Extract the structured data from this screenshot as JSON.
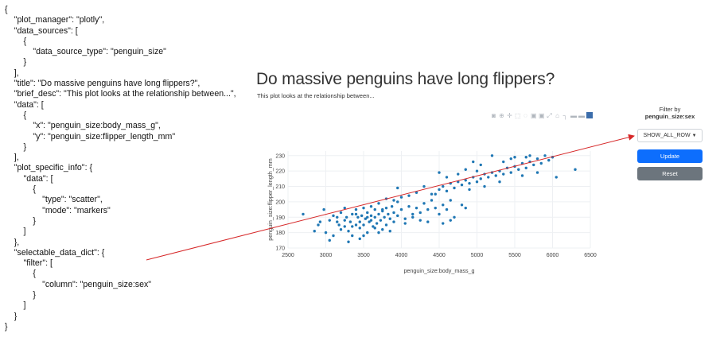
{
  "json_lines": [
    "{",
    "    \"plot_manager\": \"plotly\",",
    "    \"data_sources\": [",
    "        {",
    "            \"data_source_type\": \"penguin_size\"",
    "        }",
    "    ],",
    "    \"title\": \"Do massive penguins have long flippers?\",",
    "    \"brief_desc\": \"This plot looks at the relationship between...\",",
    "    \"data\": [",
    "        {",
    "            \"x\": \"penguin_size:body_mass_g\",",
    "            \"y\": \"penguin_size:flipper_length_mm\"",
    "        }",
    "    ],",
    "    \"plot_specific_info\": {",
    "        \"data\": [",
    "            {",
    "                \"type\": \"scatter\",",
    "                \"mode\": \"markers\"",
    "            }",
    "        ]",
    "    },",
    "    \"selectable_data_dict\": {",
    "        \"filter\": [",
    "            {",
    "                \"column\": \"penguin_size:sex\"",
    "            }",
    "        ]",
    "    }",
    "}"
  ],
  "page": {
    "title": "Do massive penguins have long flippers?",
    "desc": "This plot looks at the relationship between..."
  },
  "filter": {
    "title_line1": "Filter by",
    "title_line2": "penguin_size:sex",
    "select_value": "SHOW_ALL_ROW",
    "update_label": "Update",
    "reset_label": "Reset"
  },
  "colors": {
    "marker": "#1f77b4",
    "arrow": "#d62728",
    "update": "#0d6efd",
    "reset": "#6c757d"
  },
  "modebar_icons": [
    "camera-icon",
    "zoom-icon",
    "pan-icon",
    "box-select-icon",
    "lasso-icon",
    "zoom-in-icon",
    "zoom-out-icon",
    "autoscale-icon",
    "reset-axes-icon",
    "spike-icon",
    "hover-closest-icon",
    "hover-compare-icon",
    "plotly-logo-icon"
  ],
  "chart_data": {
    "type": "scatter",
    "xlabel": "penguin_size:body_mass_g",
    "ylabel": "penguin_size:flipper_length_mm",
    "xlim": [
      2500,
      6500
    ],
    "ylim": [
      170,
      233
    ],
    "xticks": [
      2500,
      3000,
      3500,
      4000,
      4500,
      5000,
      5500,
      6000,
      6500
    ],
    "yticks": [
      170,
      180,
      190,
      200,
      210,
      220,
      230
    ],
    "points": [
      [
        2700,
        192
      ],
      [
        2850,
        181
      ],
      [
        2900,
        185
      ],
      [
        2925,
        187
      ],
      [
        2975,
        195
      ],
      [
        3000,
        180
      ],
      [
        3050,
        188
      ],
      [
        3100,
        191
      ],
      [
        3100,
        178
      ],
      [
        3150,
        190
      ],
      [
        3175,
        185
      ],
      [
        3200,
        193
      ],
      [
        3250,
        184
      ],
      [
        3250,
        196
      ],
      [
        3275,
        190
      ],
      [
        3300,
        181
      ],
      [
        3325,
        187
      ],
      [
        3350,
        192
      ],
      [
        3350,
        178
      ],
      [
        3400,
        185
      ],
      [
        3400,
        195
      ],
      [
        3425,
        190
      ],
      [
        3450,
        187
      ],
      [
        3450,
        183
      ],
      [
        3475,
        191
      ],
      [
        3500,
        196
      ],
      [
        3500,
        185
      ],
      [
        3525,
        189
      ],
      [
        3550,
        193
      ],
      [
        3550,
        180
      ],
      [
        3575,
        187
      ],
      [
        3600,
        191
      ],
      [
        3600,
        197
      ],
      [
        3625,
        184
      ],
      [
        3650,
        190
      ],
      [
        3650,
        195
      ],
      [
        3675,
        186
      ],
      [
        3700,
        192
      ],
      [
        3700,
        199
      ],
      [
        3725,
        188
      ],
      [
        3750,
        194
      ],
      [
        3750,
        182
      ],
      [
        3775,
        190
      ],
      [
        3800,
        196
      ],
      [
        3800,
        185
      ],
      [
        3825,
        192
      ],
      [
        3850,
        189
      ],
      [
        3875,
        197
      ],
      [
        3900,
        193
      ],
      [
        3900,
        187
      ],
      [
        3950,
        191
      ],
      [
        3950,
        200
      ],
      [
        4000,
        195
      ],
      [
        4050,
        189
      ],
      [
        4100,
        197
      ],
      [
        4150,
        190
      ],
      [
        4200,
        196
      ],
      [
        4250,
        193
      ],
      [
        4300,
        199
      ],
      [
        4350,
        195
      ],
      [
        4400,
        201
      ],
      [
        4450,
        196
      ],
      [
        4500,
        192
      ],
      [
        4550,
        198
      ],
      [
        4600,
        195
      ],
      [
        4650,
        201
      ],
      [
        4700,
        190
      ],
      [
        4800,
        198
      ],
      [
        4850,
        196
      ],
      [
        3050,
        175
      ],
      [
        3300,
        174
      ],
      [
        3500,
        178
      ],
      [
        3700,
        180
      ],
      [
        3200,
        182
      ],
      [
        3450,
        176
      ],
      [
        4450,
        205
      ],
      [
        4500,
        208
      ],
      [
        4550,
        210
      ],
      [
        4600,
        207
      ],
      [
        4650,
        212
      ],
      [
        4700,
        209
      ],
      [
        4750,
        213
      ],
      [
        4800,
        211
      ],
      [
        4850,
        214
      ],
      [
        4900,
        212
      ],
      [
        4950,
        216
      ],
      [
        5000,
        213
      ],
      [
        5050,
        215
      ],
      [
        5100,
        218
      ],
      [
        5150,
        216
      ],
      [
        5200,
        219
      ],
      [
        5250,
        217
      ],
      [
        5300,
        220
      ],
      [
        5350,
        218
      ],
      [
        5400,
        222
      ],
      [
        5450,
        219
      ],
      [
        5500,
        223
      ],
      [
        5550,
        221
      ],
      [
        5600,
        225
      ],
      [
        5650,
        222
      ],
      [
        5700,
        226
      ],
      [
        5750,
        224
      ],
      [
        5800,
        228
      ],
      [
        5850,
        225
      ],
      [
        5900,
        230
      ],
      [
        5950,
        227
      ],
      [
        6000,
        229
      ],
      [
        6300,
        221
      ],
      [
        5200,
        230
      ],
      [
        5500,
        229
      ],
      [
        5700,
        230
      ],
      [
        4900,
        208
      ],
      [
        5000,
        220
      ],
      [
        4300,
        210
      ],
      [
        4400,
        205
      ],
      [
        4600,
        216
      ],
      [
        4750,
        218
      ],
      [
        4850,
        221
      ],
      [
        5100,
        210
      ],
      [
        5300,
        213
      ],
      [
        5600,
        217
      ],
      [
        5800,
        219
      ],
      [
        6050,
        216
      ],
      [
        5350,
        226
      ],
      [
        5450,
        228
      ],
      [
        5650,
        229
      ],
      [
        5050,
        224
      ],
      [
        4950,
        226
      ],
      [
        4500,
        219
      ],
      [
        4200,
        206
      ],
      [
        4100,
        204
      ],
      [
        4000,
        203
      ],
      [
        3900,
        201
      ],
      [
        3800,
        202
      ],
      [
        3950,
        209
      ],
      [
        3750,
        195
      ],
      [
        3600,
        188
      ],
      [
        3400,
        192
      ],
      [
        3150,
        187
      ],
      [
        3350,
        184
      ],
      [
        3550,
        190
      ],
      [
        3650,
        183
      ],
      [
        3850,
        181
      ],
      [
        4050,
        186
      ],
      [
        4250,
        188
      ],
      [
        4350,
        187
      ],
      [
        4650,
        188
      ],
      [
        4550,
        186
      ],
      [
        4150,
        192
      ],
      [
        3250,
        188
      ]
    ]
  }
}
